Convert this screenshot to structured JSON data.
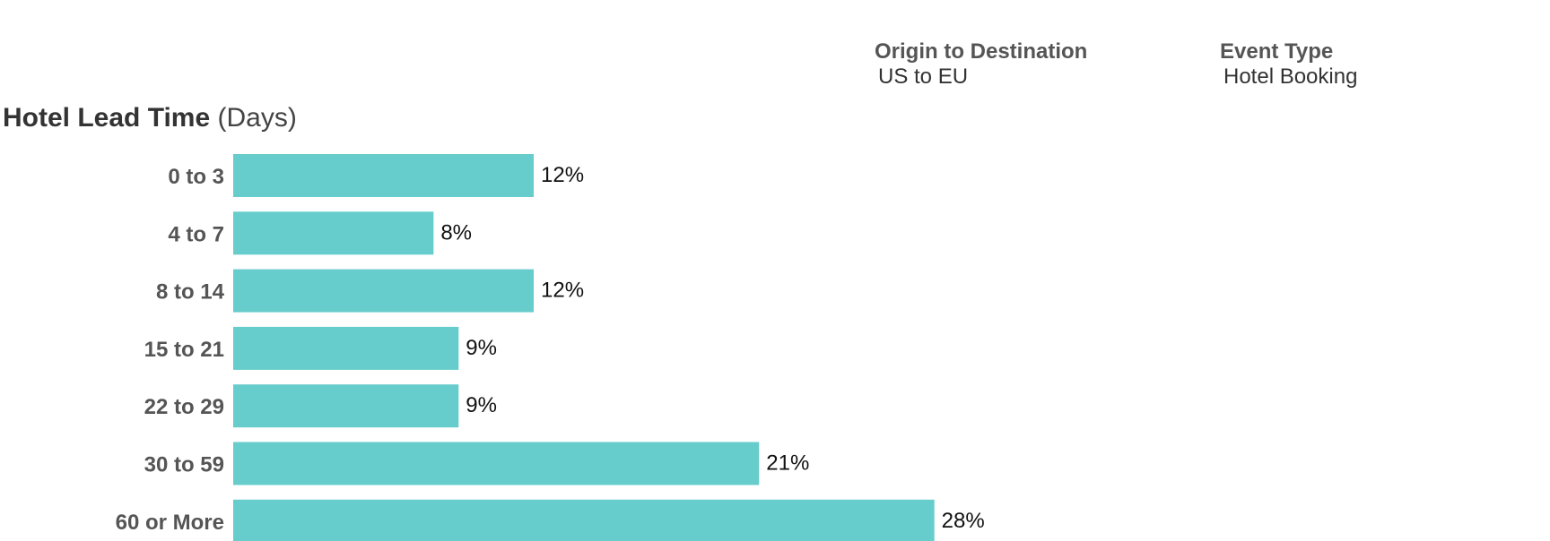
{
  "filters": [
    {
      "title": "Origin to Destination",
      "value": "US to EU"
    },
    {
      "title": "Event Type",
      "value": "Hotel Booking"
    }
  ],
  "colors": {
    "bar": "#66CCCC",
    "label": "#555555",
    "value": "#111111"
  },
  "chart_data": {
    "type": "bar",
    "orientation": "horizontal",
    "title": "Hotel Lead Time",
    "title_unit": "(Days)",
    "xlabel": "",
    "ylabel": "",
    "categories": [
      "0 to 3",
      "4 to 7",
      "8 to 14",
      "15 to 21",
      "22 to 29",
      "30 to 59",
      "60 or More"
    ],
    "values": [
      12,
      8,
      12,
      9,
      9,
      21,
      28
    ],
    "value_labels": [
      "12%",
      "8%",
      "12%",
      "9%",
      "9%",
      "21%",
      "28%"
    ],
    "unit": "%",
    "grid": false,
    "legend": "none"
  }
}
